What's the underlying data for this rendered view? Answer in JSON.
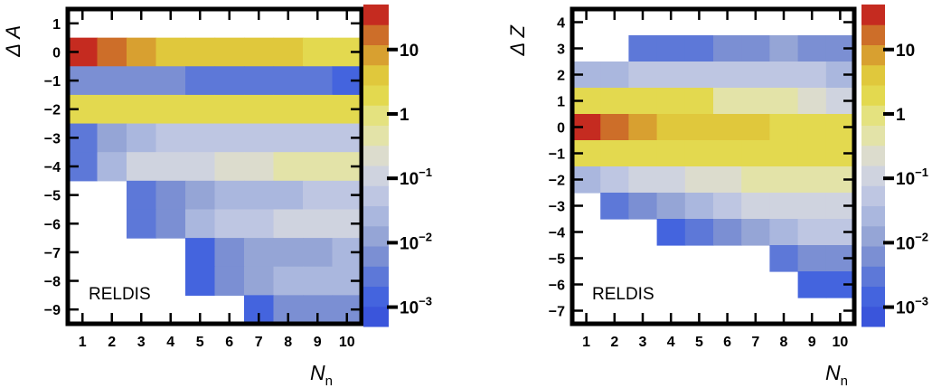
{
  "chart_data": [
    {
      "type": "heatmap",
      "ylabel": "Δ A",
      "xlabel": "N",
      "xlabel_sub": "n",
      "annotation": "RELDIS",
      "x_ticks": [
        "1",
        "2",
        "3",
        "4",
        "5",
        "6",
        "7",
        "8",
        "9",
        "10"
      ],
      "y_ticks": [
        "1",
        "0",
        "−1",
        "−2",
        "−3",
        "−4",
        "−5",
        "−6",
        "−7",
        "−8",
        "−9"
      ],
      "y_values": [
        1,
        0,
        -1,
        -2,
        -3,
        -4,
        -5,
        -6,
        -7,
        -8,
        -9
      ],
      "colorbar": {
        "scale": "log",
        "range": [
          0.0005,
          50
        ],
        "tick_labels": [
          {
            "base": "10",
            "exp": ""
          },
          {
            "base": "1",
            "exp": ""
          },
          {
            "base": "10",
            "exp": "−1"
          },
          {
            "base": "10",
            "exp": "−2"
          },
          {
            "base": "10",
            "exp": "−3"
          }
        ],
        "tick_values": [
          10,
          1,
          0.1,
          0.01,
          0.001
        ]
      },
      "z": [
        [
          null,
          null,
          null,
          null,
          null,
          null,
          null,
          null,
          null,
          null
        ],
        [
          40,
          22,
          9,
          4.5,
          4.5,
          3,
          3,
          3,
          2.5,
          2.5
        ],
        [
          0.006,
          0.006,
          0.006,
          0.006,
          0.003,
          0.003,
          0.003,
          0.003,
          0.003,
          0.002
        ],
        [
          1.5,
          1.5,
          1.5,
          1.5,
          2.5,
          2.5,
          2.5,
          2.5,
          2.5,
          2.5
        ],
        [
          0.003,
          0.015,
          0.025,
          0.04,
          0.04,
          0.06,
          0.06,
          0.06,
          0.06,
          0.06
        ],
        [
          0.003,
          0.03,
          0.08,
          0.1,
          0.15,
          0.3,
          0.3,
          0.6,
          0.6,
          0.6
        ],
        [
          null,
          null,
          0.004,
          0.008,
          0.012,
          0.025,
          0.035,
          0.035,
          0.05,
          0.05
        ],
        [
          null,
          null,
          0.003,
          0.006,
          0.025,
          0.04,
          0.07,
          0.15,
          0.15,
          0.15
        ],
        [
          null,
          null,
          null,
          null,
          0.002,
          0.007,
          0.012,
          0.012,
          0.018,
          0.025
        ],
        [
          null,
          null,
          null,
          null,
          0.002,
          0.007,
          0.012,
          0.025,
          0.035,
          0.035
        ],
        [
          null,
          null,
          null,
          null,
          null,
          null,
          0.002,
          0.005,
          0.008,
          0.008
        ]
      ]
    },
    {
      "type": "heatmap",
      "ylabel": "Δ Z",
      "xlabel": "N",
      "xlabel_sub": "n",
      "annotation": "RELDIS",
      "x_ticks": [
        "1",
        "2",
        "3",
        "4",
        "5",
        "6",
        "7",
        "8",
        "9",
        "10"
      ],
      "y_ticks": [
        "4",
        "3",
        "2",
        "1",
        "0",
        "−1",
        "−2",
        "−3",
        "−4",
        "−5",
        "−6",
        "−7"
      ],
      "y_values": [
        4,
        3,
        2,
        1,
        0,
        -1,
        -2,
        -3,
        -4,
        -5,
        -6,
        -7
      ],
      "colorbar": {
        "scale": "log",
        "range": [
          0.0005,
          50
        ],
        "tick_labels": [
          {
            "base": "10",
            "exp": ""
          },
          {
            "base": "1",
            "exp": ""
          },
          {
            "base": "10",
            "exp": "−1"
          },
          {
            "base": "10",
            "exp": "−2"
          },
          {
            "base": "10",
            "exp": "−3"
          }
        ],
        "tick_values": [
          10,
          1,
          0.1,
          0.01,
          0.001
        ]
      },
      "z": [
        [
          null,
          null,
          null,
          null,
          null,
          null,
          null,
          null,
          null,
          null
        ],
        [
          null,
          null,
          0.004,
          0.004,
          0.004,
          0.005,
          0.005,
          0.01,
          0.006,
          0.006
        ],
        [
          0.03,
          0.03,
          0.05,
          0.05,
          0.05,
          0.05,
          0.05,
          0.05,
          0.05,
          0.03
        ],
        [
          1.5,
          1.5,
          1.5,
          1.5,
          1.5,
          0.5,
          0.5,
          0.5,
          0.3,
          0.15
        ],
        [
          40,
          22,
          9,
          4.5,
          4.5,
          3,
          3,
          2.5,
          2.5,
          2.5
        ],
        [
          2.5,
          2.5,
          2.5,
          2.5,
          2.5,
          2.5,
          2.5,
          2.5,
          2.5,
          2.5
        ],
        [
          0.02,
          0.05,
          0.1,
          0.15,
          0.3,
          0.3,
          0.6,
          0.6,
          0.6,
          0.6
        ],
        [
          null,
          0.003,
          0.006,
          0.01,
          0.03,
          0.05,
          0.1,
          0.1,
          0.15,
          0.15
        ],
        [
          null,
          null,
          null,
          0.002,
          0.004,
          0.006,
          0.015,
          0.035,
          0.05,
          0.05
        ],
        [
          null,
          null,
          null,
          null,
          null,
          null,
          null,
          0.003,
          0.006,
          0.006
        ],
        [
          null,
          null,
          null,
          null,
          null,
          null,
          null,
          null,
          0.002,
          0.002
        ],
        [
          null,
          null,
          null,
          null,
          null,
          null,
          null,
          null,
          null,
          null
        ]
      ]
    }
  ],
  "palette": [
    "#3a55db",
    "#4464de",
    "#5d78d8",
    "#7b8fd3",
    "#95a5d6",
    "#aab7de",
    "#bec6e2",
    "#cfd3df",
    "#dcdccd",
    "#e3e3a8",
    "#e4e27f",
    "#e3d94f",
    "#e0c83c",
    "#d8a030",
    "#cd6e29",
    "#c52b20"
  ]
}
